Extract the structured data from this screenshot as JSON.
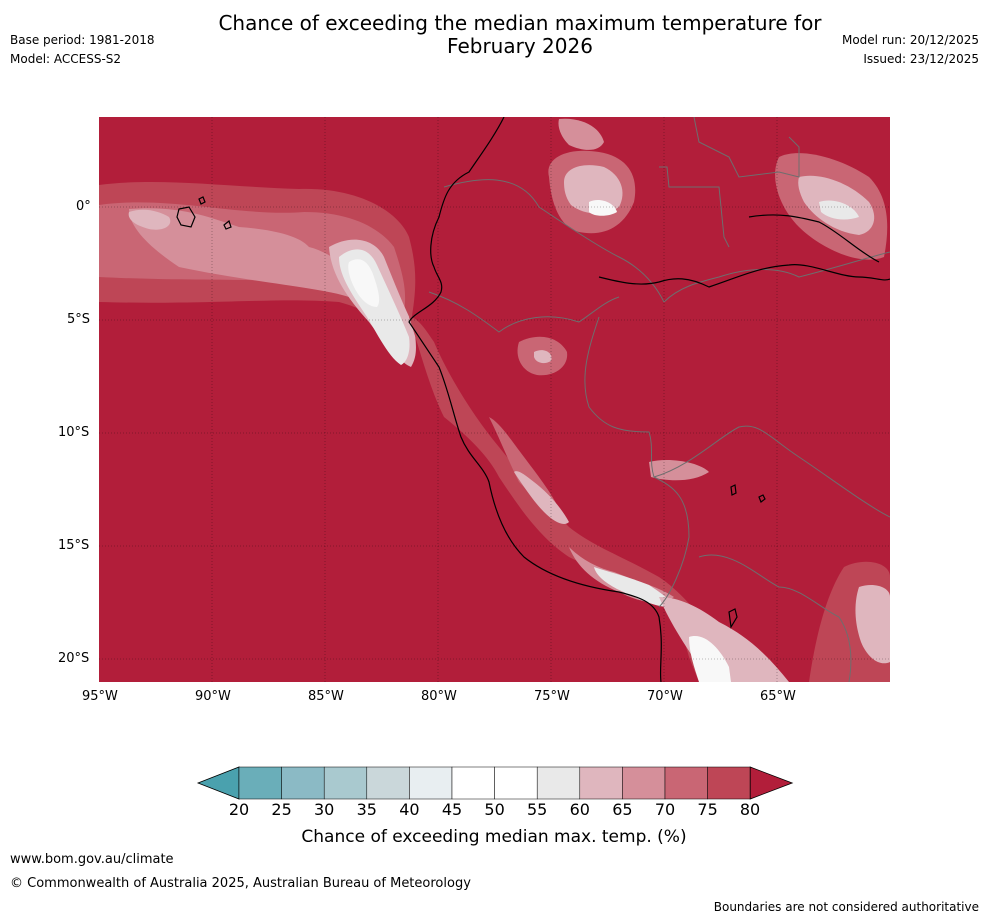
{
  "header": {
    "title_line1": "Chance of exceeding the median maximum temperature for",
    "title_line2": "February 2026",
    "base_period": "Base period: 1981-2018",
    "model": "Model: ACCESS-S2",
    "model_run": "Model run: 20/12/2025",
    "issued": "Issued: 23/12/2025"
  },
  "map": {
    "lat_labels": [
      "0°",
      "5°S",
      "10°S",
      "15°S",
      "20°S"
    ],
    "lon_labels": [
      "95°W",
      "90°W",
      "85°W",
      "80°W",
      "75°W",
      "70°W",
      "65°W"
    ],
    "extent": {
      "lon": [
        -95,
        -60
      ],
      "lat": [
        -21,
        4
      ]
    }
  },
  "colorbar": {
    "ticks": [
      "20",
      "25",
      "30",
      "35",
      "40",
      "45",
      "50",
      "55",
      "60",
      "65",
      "70",
      "75",
      "80"
    ],
    "label": "Chance of exceeding median max. temp. (%)",
    "colors": [
      "#4aa1ae",
      "#6aaeb9",
      "#8bbac5",
      "#a9c9cf",
      "#cad7da",
      "#e8eef1",
      "#ffffff",
      "#ffffff",
      "#e9e9e9",
      "#dfb6be",
      "#d58f9a",
      "#c96674",
      "#be4656",
      "#b21e3a"
    ]
  },
  "footer": {
    "url": "www.bom.gov.au/climate",
    "copyright": "© Commonwealth of Australia 2025, Australian Bureau of Meteorology",
    "disclaimer": "Boundaries are not considered authoritative"
  }
}
